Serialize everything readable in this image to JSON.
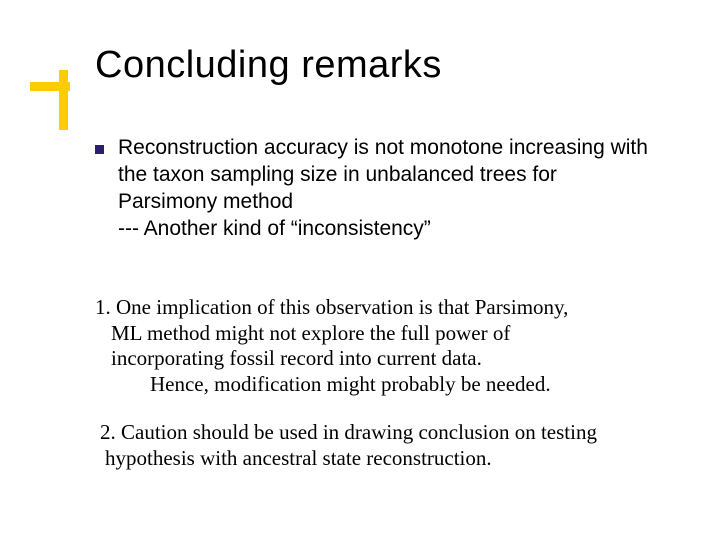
{
  "colors": {
    "accent": "#ffcc00",
    "bullet": "#2a1f6f",
    "text": "#000000",
    "background": "#ffffff"
  },
  "typography": {
    "title_font": "Verdana",
    "title_size_pt": 38,
    "body_font": "Verdana",
    "body_size_pt": 21,
    "sub_font": "Times New Roman",
    "sub_size_pt": 21
  },
  "title": "Concluding remarks",
  "bullet1": {
    "line1": "Reconstruction accuracy is not monotone increasing with the taxon sampling size in unbalanced trees for Parsimony method",
    "line2": " --- Another kind of “inconsistency”"
  },
  "point1": {
    "l1": "1.  One implication of this observation is that  Parsimony,",
    "l2": "ML method might not explore the full power of",
    "l3": "incorporating fossil record into current data.",
    "l4": "Hence, modification might probably be needed."
  },
  "point2": {
    "l1": "2.  Caution should be used in drawing conclusion on testing",
    "l2": "hypothesis with ancestral state reconstruction."
  }
}
